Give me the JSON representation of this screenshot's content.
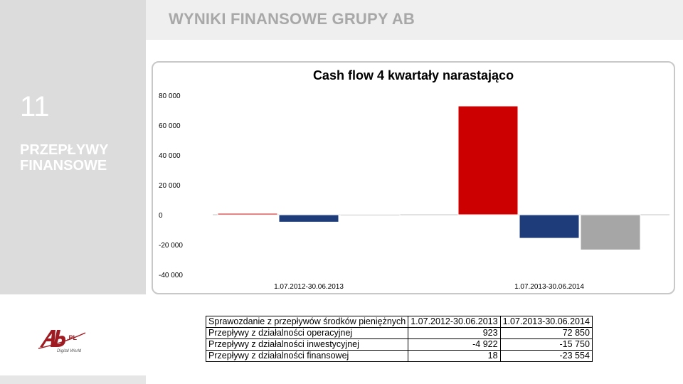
{
  "page": {
    "title": "WYNIKI FINANSOWE GRUPY AB",
    "section_number": "11",
    "section_title_line1": "PRZEPŁYWY",
    "section_title_line2": "FINANSOWE"
  },
  "logo": {
    "main": "Ab",
    "suffix": ".PL",
    "tagline": "Digital World"
  },
  "colors": {
    "operating": "#cc0000",
    "investing": "#1f3c7a",
    "financing": "#a6a6a6",
    "panel": "#dcdcdc",
    "title_text": "#a8a8a8"
  },
  "chart_data": {
    "type": "bar",
    "title": "Cash flow 4 kwartały narastająco",
    "categories": [
      "1.07.2012-30.06.2013",
      "1.07.2013-30.06.2014"
    ],
    "series": [
      {
        "name": "Przepływy z działalności operacyjnej",
        "values": [
          923,
          72850
        ]
      },
      {
        "name": "Przepływy z działalności inwestycyjnej",
        "values": [
          -4922,
          -15750
        ]
      },
      {
        "name": "Przepływy z działalności finansowej",
        "values": [
          18,
          -23554
        ]
      }
    ],
    "ylim": [
      -40000,
      80000
    ],
    "yticks": [
      -40000,
      -20000,
      0,
      20000,
      40000,
      60000,
      80000
    ],
    "ytick_labels": [
      "-40 000",
      "-20 000",
      "0",
      "20 000",
      "40 000",
      "60 000",
      "80 000"
    ],
    "xlabel": "",
    "ylabel": "",
    "grid": false,
    "legend": "none"
  },
  "table": {
    "header": [
      "Sprawozdanie z przepływów środków pieniężnych",
      "1.07.2012-30.06.2013",
      "1.07.2013-30.06.2014"
    ],
    "rows": [
      [
        "Przepływy z działalności operacyjnej",
        "923",
        "72 850"
      ],
      [
        "Przepływy z działalności inwestycyjnej",
        "-4 922",
        "-15 750"
      ],
      [
        "Przepływy z działalności finansowej",
        "18",
        "-23 554"
      ]
    ]
  }
}
